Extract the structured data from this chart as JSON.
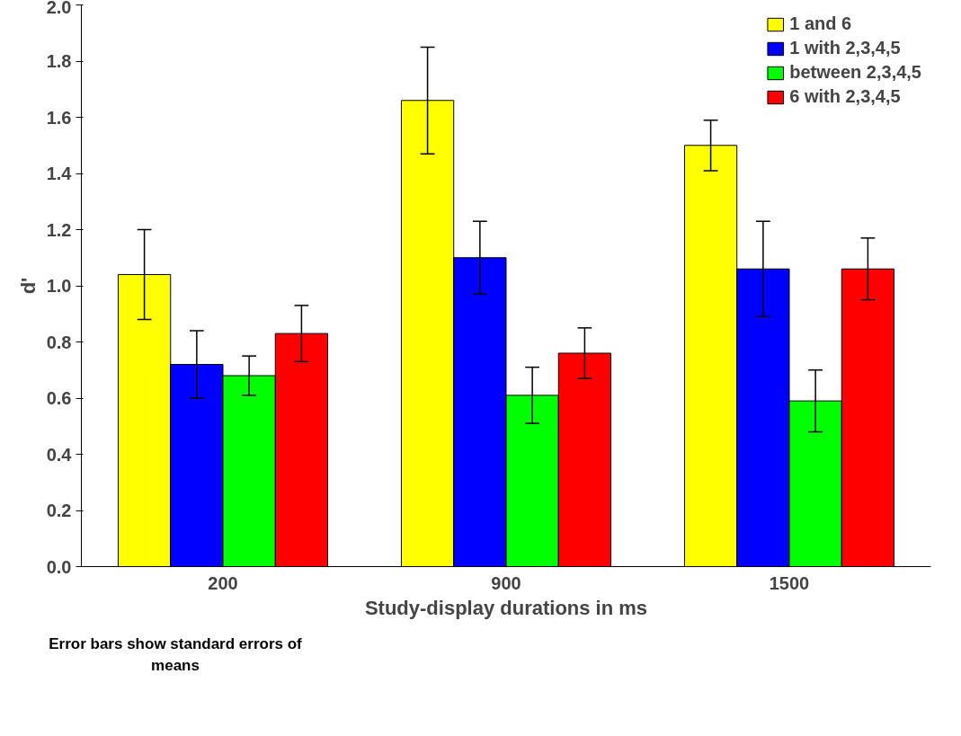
{
  "chart_data": {
    "type": "bar",
    "categories": [
      "200",
      "900",
      "1500"
    ],
    "xlabel": "Study-display durations in ms",
    "ylabel": "d'",
    "ylim": [
      0,
      2.0
    ],
    "yticks": [
      {
        "value": 0,
        "label": "0.0"
      },
      0.2,
      0.4,
      0.6,
      0.8,
      {
        "value": 1,
        "label": "1.0"
      },
      1.2,
      1.4,
      1.6,
      1.8,
      {
        "value": 2,
        "label": "2.0"
      }
    ],
    "series": [
      {
        "name": "1 and 6",
        "color": "#ffff00",
        "values": [
          1.04,
          1.66,
          1.5
        ],
        "errors": [
          0.16,
          0.19,
          0.09
        ]
      },
      {
        "name": "1 with 2,3,4,5",
        "color": "#0000ff",
        "values": [
          0.72,
          1.1,
          1.06
        ],
        "errors": [
          0.12,
          0.13,
          0.17
        ]
      },
      {
        "name": "between 2,3,4,5",
        "color": "#00ff00",
        "values": [
          0.68,
          0.61,
          0.59
        ],
        "errors": [
          0.07,
          0.1,
          0.11
        ]
      },
      {
        "name": "6 with 2,3,4,5",
        "color": "#ff0000",
        "values": [
          0.83,
          0.76,
          1.06
        ],
        "errors": [
          0.1,
          0.09,
          0.11
        ]
      }
    ],
    "legend": "top right",
    "grid": false,
    "annotations": [
      "Error bars show standard errors of means"
    ]
  }
}
